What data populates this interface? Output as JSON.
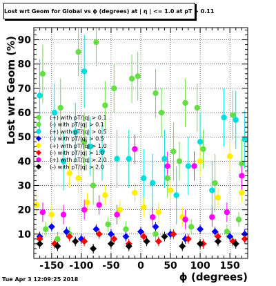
{
  "timestamp": "Tue Apr  3 12:09:25 2018",
  "chart_data": {
    "type": "scatter",
    "title": "Lost wrt Geom for Global vs ϕ (degrees) at | η | <= 1.0 at pT > 0.11",
    "xlabel": "ϕ (degrees)",
    "ylabel": "Lost wrt Geom (%)",
    "xlim": [
      -180,
      180
    ],
    "ylim": [
      0,
      95
    ],
    "xticks": [
      "-150",
      "-100",
      "-50",
      "0",
      "50",
      "100",
      "150"
    ],
    "yticks": [
      "10",
      "20",
      "30",
      "40",
      "50",
      "60",
      "70",
      "80",
      "90"
    ],
    "grid": true,
    "legend_position": "left-middle",
    "series": [
      {
        "name": "(+) with pT/|q| > 0.1",
        "color": "#66dd44",
        "marker": "circle",
        "x": [
          -165,
          -135,
          -105,
          -95,
          -75,
          -60,
          -45,
          -15,
          -5,
          25,
          35,
          55,
          75,
          95,
          125,
          155,
          170
        ],
        "y": [
          76,
          62,
          85,
          48,
          89,
          63,
          70,
          74,
          75,
          68,
          60,
          44,
          64,
          62,
          31,
          59,
          39
        ],
        "err": [
          12,
          12,
          10,
          12,
          10,
          10,
          10,
          10,
          10,
          10,
          10,
          12,
          10,
          10,
          12,
          10,
          10
        ]
      },
      {
        "name": "(-) with pT/|q| > 0.1",
        "color": "#66dd44",
        "marker": "circle",
        "x": [
          -160,
          -140,
          -120,
          -80,
          -55,
          -25,
          25,
          45,
          65,
          85,
          105,
          145,
          165
        ],
        "y": [
          12,
          8,
          10,
          30,
          14,
          12,
          10,
          33,
          40,
          13,
          45,
          11,
          16
        ],
        "err": [
          3,
          3,
          3,
          8,
          3,
          3,
          3,
          8,
          8,
          3,
          8,
          3,
          3
        ]
      },
      {
        "name": "(+) with pT/|q| > 0.5",
        "color": "#00dddd",
        "marker": "circle",
        "x": [
          -170,
          -145,
          -130,
          -110,
          -95,
          -85,
          -65,
          -40,
          -20,
          5,
          20,
          40,
          60,
          80,
          100,
          120,
          140,
          160,
          175
        ],
        "y": [
          67,
          60,
          40,
          52,
          77,
          46,
          44,
          41,
          41,
          33,
          31,
          41,
          26,
          38,
          48,
          28,
          58,
          57,
          49
        ],
        "err": [
          15,
          12,
          12,
          12,
          15,
          12,
          12,
          12,
          12,
          12,
          12,
          12,
          12,
          12,
          12,
          12,
          12,
          12,
          12
        ]
      },
      {
        "name": "(-) with pT/|q| > 0.5",
        "color": "#0000ee",
        "marker": "diamond",
        "x": [
          -170,
          -150,
          -125,
          -100,
          -75,
          -50,
          -25,
          0,
          25,
          50,
          75,
          100,
          125,
          150,
          175
        ],
        "y": [
          9,
          13,
          11,
          8,
          12,
          10,
          9,
          11,
          13,
          10,
          8,
          12,
          11,
          9,
          10
        ],
        "err": [
          2,
          2,
          2,
          2,
          2,
          2,
          2,
          2,
          2,
          2,
          2,
          2,
          2,
          2,
          2
        ]
      },
      {
        "name": "(+) with pT/|q| > 1.0",
        "color": "#ffee00",
        "marker": "circle",
        "x": [
          -175,
          -150,
          -120,
          -105,
          -90,
          -60,
          -35,
          -10,
          5,
          30,
          50,
          70,
          100,
          130,
          150,
          170
        ],
        "y": [
          22,
          18,
          35,
          33,
          23,
          26,
          20,
          27,
          21,
          19,
          28,
          17,
          40,
          25,
          42,
          27
        ],
        "err": [
          4,
          4,
          6,
          6,
          4,
          4,
          4,
          4,
          4,
          4,
          4,
          4,
          6,
          4,
          6,
          4
        ]
      },
      {
        "name": "(-) with pT/|q| > 1.0",
        "color": "#ff0000",
        "marker": "diamond",
        "x": [
          -170,
          -145,
          -120,
          -95,
          -70,
          -45,
          -20,
          5,
          30,
          55,
          80,
          105,
          130,
          155,
          175
        ],
        "y": [
          8,
          6,
          9,
          7,
          10,
          8,
          6,
          9,
          7,
          10,
          8,
          6,
          9,
          7,
          8
        ],
        "err": [
          2,
          2,
          2,
          2,
          2,
          2,
          2,
          2,
          2,
          2,
          2,
          2,
          2,
          2,
          2
        ]
      },
      {
        "name": "(+) with pT/|q| > 2.0",
        "color": "#ff00ff",
        "marker": "circle",
        "x": [
          -165,
          -130,
          -95,
          -70,
          -40,
          -10,
          20,
          45,
          75,
          90,
          120,
          145,
          170
        ],
        "y": [
          19,
          18,
          20,
          22,
          18,
          45,
          17,
          38,
          16,
          38,
          17,
          19,
          34
        ],
        "err": [
          4,
          4,
          4,
          4,
          4,
          6,
          4,
          6,
          4,
          6,
          4,
          4,
          6
        ]
      },
      {
        "name": "(-) with pT/|q| > 2.0",
        "color": "#000000",
        "marker": "diamond",
        "x": [
          -170,
          -140,
          -110,
          -80,
          -50,
          -20,
          10,
          40,
          70,
          100,
          130,
          160
        ],
        "y": [
          6,
          5,
          7,
          4,
          6,
          5,
          7,
          9,
          5,
          6,
          7,
          6
        ],
        "err": [
          2,
          2,
          2,
          2,
          2,
          2,
          2,
          2,
          2,
          2,
          2,
          2
        ]
      }
    ]
  }
}
